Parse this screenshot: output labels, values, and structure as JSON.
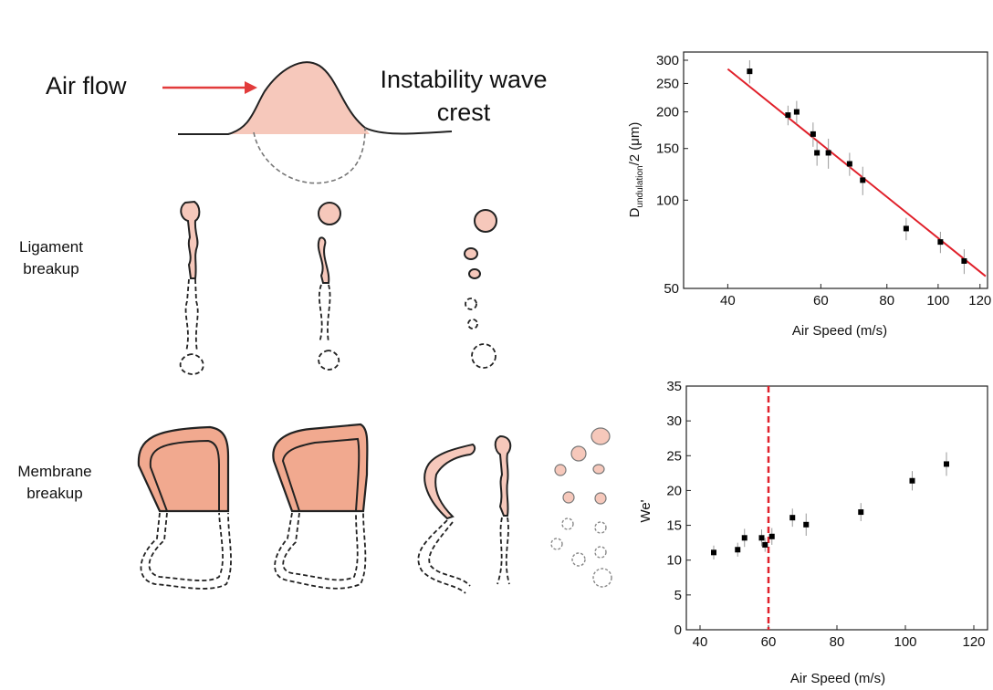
{
  "diagram": {
    "air_flow": "Air flow",
    "wave_crest": [
      "Instability wave",
      "crest"
    ],
    "ligament": [
      "Ligament",
      "breakup"
    ],
    "membrane": [
      "Membrane",
      "breakup"
    ]
  },
  "chart_data": [
    {
      "type": "scatter",
      "xlog": true,
      "ylog": true,
      "ylabel": "D",
      "ylabel_sub": "undulation",
      "ylabel_rest": "/2 (μm)",
      "xlabel": "Air Speed (m/s)",
      "xlim": [
        33,
        124
      ],
      "ylim": [
        50,
        320
      ],
      "xticks": [
        40,
        60,
        80,
        100,
        120
      ],
      "yticks": [
        50,
        100,
        150,
        200,
        250,
        300
      ],
      "series": [
        {
          "color": "#000000",
          "x": [
            44,
            52,
            54,
            58,
            59,
            62,
            68,
            72,
            87,
            101,
            112
          ],
          "values": [
            275,
            195,
            200,
            168,
            145,
            145,
            133,
            117,
            80,
            72,
            62
          ],
          "errors": [
            25,
            15,
            18,
            16,
            14,
            17,
            12,
            13,
            7,
            6,
            6
          ]
        }
      ],
      "fit": {
        "color": "#e0202a",
        "x": [
          40,
          123
        ],
        "y": [
          280,
          55
        ]
      }
    },
    {
      "type": "scatter",
      "xlog": false,
      "ylog": false,
      "ylabel": "We'",
      "xlabel": "Air Speed (m/s)",
      "xlim": [
        36,
        124
      ],
      "ylim": [
        0,
        35
      ],
      "xticks": [
        40,
        60,
        80,
        100,
        120
      ],
      "yticks": [
        0,
        5,
        10,
        15,
        20,
        25,
        30,
        35
      ],
      "series": [
        {
          "color": "#000000",
          "x": [
            44,
            51,
            53,
            58,
            59,
            61,
            67,
            71,
            87,
            102,
            112
          ],
          "values": [
            11.1,
            11.5,
            13.2,
            13.2,
            12.2,
            13.4,
            16.1,
            15.1,
            16.9,
            21.4,
            23.8
          ],
          "errors": [
            1.0,
            1.0,
            1.3,
            1.2,
            1.0,
            1.2,
            1.3,
            1.6,
            1.3,
            1.4,
            1.7
          ]
        }
      ],
      "vline": {
        "color": "#e0202a",
        "x": 60
      }
    }
  ]
}
